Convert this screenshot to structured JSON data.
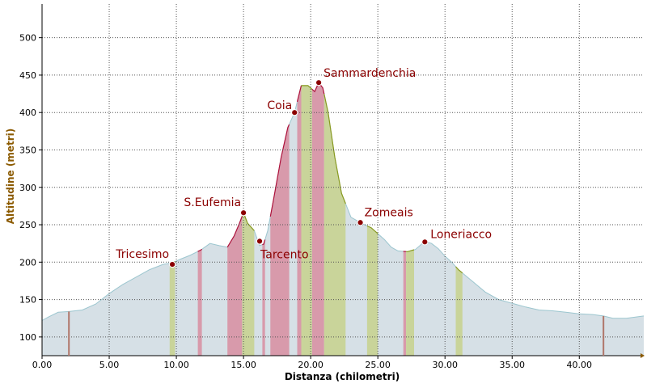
{
  "chart_data": {
    "type": "area",
    "xlabel": "Distanza (chilometri)",
    "ylabel": "Altitudine (metri)",
    "xlim": [
      0,
      44.8
    ],
    "ylim": [
      75,
      545
    ],
    "grid": true,
    "x_ticks": [
      0,
      5,
      10,
      15,
      20,
      25,
      30,
      35,
      40
    ],
    "x_tick_labels": [
      "0.00",
      "5.00",
      "10.00",
      "15.00",
      "20.00",
      "25.00",
      "30.00",
      "35.00",
      "40.00"
    ],
    "y_ticks": [
      100,
      150,
      200,
      250,
      300,
      350,
      400,
      450,
      500
    ],
    "y_tick_labels": [
      "100",
      "150",
      "200",
      "250",
      "300",
      "350",
      "400",
      "450",
      "500"
    ],
    "profile": {
      "x": [
        0,
        0.5,
        1.2,
        2.0,
        3.0,
        4.0,
        5.0,
        6.0,
        7.0,
        8.0,
        9.0,
        9.7,
        10.3,
        11.0,
        11.8,
        12.5,
        13.2,
        13.8,
        14.3,
        14.7,
        15.0,
        15.3,
        15.8,
        16.2,
        16.5,
        16.8,
        17.2,
        17.8,
        18.3,
        18.8,
        19.3,
        19.8,
        20.3,
        20.6,
        20.9,
        21.3,
        21.8,
        22.3,
        23.0,
        23.5,
        24.0,
        24.5,
        25.0,
        25.5,
        26.0,
        26.5,
        27.2,
        27.8,
        28.5,
        29.0,
        29.5,
        30.0,
        30.5,
        31.0,
        32.0,
        33.0,
        34.0,
        35.0,
        36.0,
        37.0,
        38.0,
        39.0,
        40.0,
        41.0,
        41.8,
        42.5,
        43.5,
        44.8
      ],
      "y": [
        122,
        127,
        133,
        134,
        136,
        144,
        158,
        170,
        180,
        190,
        197,
        199,
        204,
        209,
        216,
        225,
        222,
        220,
        235,
        252,
        266,
        252,
        242,
        222,
        224,
        242,
        280,
        340,
        380,
        400,
        436,
        436,
        428,
        440,
        433,
        400,
        340,
        292,
        260,
        255,
        250,
        246,
        238,
        230,
        220,
        215,
        214,
        217,
        228,
        225,
        218,
        208,
        200,
        190,
        175,
        160,
        150,
        145,
        140,
        136,
        135,
        133,
        131,
        130,
        128,
        125,
        125,
        128
      ]
    },
    "series": [
      {
        "name": "",
        "color": "#d89aab",
        "segments": [
          [
            11.6,
            11.9
          ],
          [
            13.8,
            14.9
          ],
          [
            16.4,
            16.6
          ],
          [
            17.0,
            18.4
          ],
          [
            19.0,
            19.3
          ],
          [
            20.1,
            21.0
          ],
          [
            26.9,
            27.1
          ]
        ]
      },
      {
        "name": "",
        "color": "#c9d49a",
        "segments": [
          [
            9.5,
            9.9
          ],
          [
            14.9,
            15.8
          ],
          [
            19.3,
            20.1
          ],
          [
            21.0,
            22.6
          ],
          [
            24.2,
            25.0
          ],
          [
            27.1,
            27.7
          ],
          [
            30.8,
            31.3
          ]
        ]
      }
    ],
    "waypoints": [
      {
        "label": "Tricesimo",
        "x": 9.7,
        "y": 197
      },
      {
        "label": "S.Eufemia",
        "x": 15.0,
        "y": 266
      },
      {
        "label": "Tarcento",
        "x": 16.2,
        "y": 228
      },
      {
        "label": "Coia",
        "x": 18.8,
        "y": 400
      },
      {
        "label": "Sammardenchia",
        "x": 20.6,
        "y": 440
      },
      {
        "label": "Zomeais",
        "x": 23.7,
        "y": 253
      },
      {
        "label": "Loneriacco",
        "x": 28.5,
        "y": 227
      }
    ],
    "markers": [
      {
        "x": 2.0,
        "y": 134
      },
      {
        "x": 41.8,
        "y": 128
      }
    ],
    "colors": {
      "fill": "#d6e0e6",
      "outline": "#9cc6cf",
      "grid": "#555555",
      "xlabel": "#000000",
      "ylabel": "#8b5a00",
      "waypoint": "#8b0000"
    }
  }
}
